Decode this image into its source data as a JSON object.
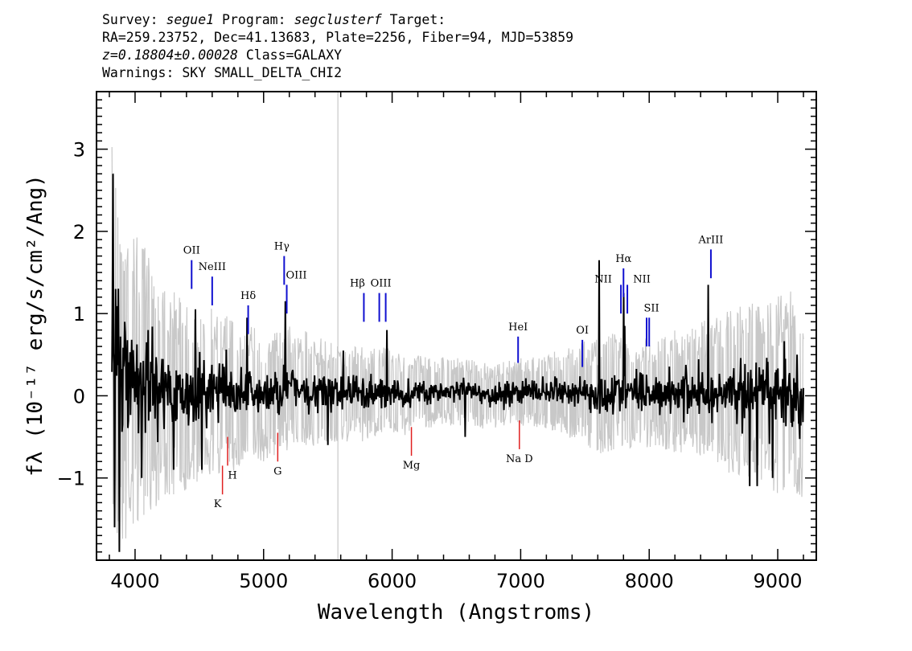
{
  "header": {
    "survey_label": "Survey:",
    "survey": "segue1",
    "program_label": "Program:",
    "program": "segclusterf",
    "target_label": "Target:",
    "line2": "RA=259.23752, Dec=41.13683, Plate=2256, Fiber=94, MJD=53859",
    "redshift": "z=0.18804±0.00028",
    "class_text": "Class=GALAXY",
    "warnings": "Warnings: SKY SMALL_DELTA_CHI2"
  },
  "chart_data": {
    "type": "line",
    "xlabel": "Wavelength (Angstroms)",
    "ylabel": "fλ (10⁻¹⁷ erg/s/cm²/Ang)",
    "xlim": [
      3700,
      9300
    ],
    "ylim": [
      -2.0,
      3.7
    ],
    "x_ticks": [
      4000,
      5000,
      6000,
      7000,
      8000,
      9000
    ],
    "y_ticks": [
      -1,
      0,
      1,
      2,
      3
    ],
    "x_tick_labels": [
      "4000",
      "5000",
      "6000",
      "7000",
      "8000",
      "9000"
    ],
    "y_tick_labels": [
      "−1",
      "0",
      "1",
      "2",
      "3"
    ],
    "colors": {
      "flux": "#000000",
      "error": "#c8c8c8",
      "emission": "#1010d0",
      "absorption": "#e02020"
    },
    "series": [
      {
        "name": "flux",
        "x": [
          3820,
          3900,
          4000,
          4100,
          4200,
          4300,
          4400,
          4500,
          4600,
          4700,
          4800,
          4900,
          5000,
          5100,
          5200,
          5300,
          5400,
          5500,
          5600,
          5700,
          5800,
          5900,
          6000,
          6100,
          6200,
          6300,
          6400,
          6500,
          6600,
          6700,
          6800,
          6900,
          7000,
          7100,
          7200,
          7300,
          7400,
          7500,
          7600,
          7700,
          7800,
          7900,
          8000,
          8100,
          8200,
          8300,
          8400,
          8500,
          8600,
          8700,
          8800,
          8900,
          9000,
          9100,
          9200
        ],
        "y": [
          0.6,
          0.3,
          0.2,
          0.15,
          0.1,
          0.05,
          0.0,
          0.0,
          0.05,
          0.05,
          0.0,
          0.05,
          0.0,
          0.05,
          0.1,
          0.1,
          0.05,
          0.0,
          0.05,
          0.05,
          0.0,
          0.05,
          0.05,
          0.0,
          0.05,
          0.05,
          0.05,
          0.05,
          0.05,
          0.0,
          0.0,
          0.05,
          0.05,
          0.05,
          0.05,
          0.05,
          0.05,
          0.05,
          0.0,
          0.05,
          0.05,
          0.05,
          0.05,
          0.05,
          0.05,
          0.05,
          0.05,
          0.0,
          0.05,
          0.05,
          0.05,
          0.0,
          0.0,
          0.05,
          -0.2
        ]
      },
      {
        "name": "error",
        "x": [
          3820,
          3900,
          4000,
          4100,
          4200,
          4300,
          4400,
          4500,
          4600,
          4700,
          4800,
          4900,
          5000,
          5100,
          5200,
          5300,
          5400,
          5500,
          5600,
          5700,
          5800,
          5900,
          6000,
          6100,
          6200,
          6300,
          6400,
          6500,
          6600,
          6700,
          6800,
          6900,
          7000,
          7100,
          7200,
          7300,
          7400,
          7500,
          7600,
          7700,
          7800,
          7900,
          8000,
          8100,
          8200,
          8300,
          8400,
          8500,
          8600,
          8700,
          8800,
          8900,
          9000,
          9100,
          9200
        ],
        "y": [
          2.2,
          1.9,
          1.6,
          1.4,
          1.2,
          1.1,
          1.0,
          0.95,
          0.9,
          0.85,
          0.8,
          0.75,
          0.7,
          0.68,
          0.65,
          0.62,
          0.6,
          0.58,
          0.55,
          0.52,
          0.5,
          0.48,
          0.45,
          0.42,
          0.4,
          0.38,
          0.37,
          0.36,
          0.35,
          0.35,
          0.35,
          0.35,
          0.36,
          0.37,
          0.4,
          0.45,
          0.5,
          0.55,
          0.65,
          0.65,
          0.6,
          0.6,
          0.6,
          0.62,
          0.65,
          0.7,
          0.75,
          0.8,
          0.85,
          0.9,
          0.95,
          1.0,
          1.05,
          1.1,
          1.1
        ]
      }
    ],
    "spikes": [
      {
        "x": 3830,
        "y": 2.7
      },
      {
        "x": 3840,
        "y": -1.6
      },
      {
        "x": 3850,
        "y": 1.3
      },
      {
        "x": 3880,
        "y": -1.9
      },
      {
        "x": 3920,
        "y": 0.9
      },
      {
        "x": 4050,
        "y": -1.0
      },
      {
        "x": 4100,
        "y": 0.8
      },
      {
        "x": 4300,
        "y": -0.9
      },
      {
        "x": 4470,
        "y": 1.05
      },
      {
        "x": 4520,
        "y": -0.9
      },
      {
        "x": 4870,
        "y": 0.95
      },
      {
        "x": 5170,
        "y": 1.15
      },
      {
        "x": 5500,
        "y": -0.6
      },
      {
        "x": 5620,
        "y": 0.55
      },
      {
        "x": 5960,
        "y": 0.8
      },
      {
        "x": 6570,
        "y": -0.5
      },
      {
        "x": 7610,
        "y": 1.65
      },
      {
        "x": 7800,
        "y": 1.25
      },
      {
        "x": 7810,
        "y": 0.85
      },
      {
        "x": 8460,
        "y": 1.35
      },
      {
        "x": 8780,
        "y": -1.1
      },
      {
        "x": 8840,
        "y": -1.1
      },
      {
        "x": 8960,
        "y": -1.0
      },
      {
        "x": 9060,
        "y": 0.45
      },
      {
        "x": 9150,
        "y": 0.5
      }
    ],
    "emission_lines": [
      {
        "label": "OII",
        "x": 4440,
        "y_top": 1.65,
        "y_bot": 1.3
      },
      {
        "label": "NeIII",
        "x": 4600,
        "y_top": 1.45,
        "y_bot": 1.1
      },
      {
        "label": "Hδ",
        "x": 4880,
        "y_top": 1.1,
        "y_bot": 0.75
      },
      {
        "label": "Hγ",
        "x": 5160,
        "y_top": 1.7,
        "y_bot": 1.35
      },
      {
        "label": "OIII",
        "x": 5180,
        "y_top": 1.35,
        "y_bot": 1.0
      },
      {
        "label": "Hβ",
        "x": 5780,
        "y_top": 1.25,
        "y_bot": 0.9
      },
      {
        "label": "OIII",
        "x": 5900,
        "y_top": 1.25,
        "y_bot": 0.9
      },
      {
        "label": "",
        "x": 5950,
        "y_top": 1.25,
        "y_bot": 0.9
      },
      {
        "label": "HeI",
        "x": 6980,
        "y_top": 0.72,
        "y_bot": 0.4
      },
      {
        "label": "OI",
        "x": 7480,
        "y_top": 0.68,
        "y_bot": 0.35
      },
      {
        "label": "NII",
        "x": 7780,
        "y_top": 1.35,
        "y_bot": 1.0
      },
      {
        "label": "Hα",
        "x": 7800,
        "y_top": 1.55,
        "y_bot": 1.2
      },
      {
        "label": "NII",
        "x": 7830,
        "y_top": 1.35,
        "y_bot": 1.0
      },
      {
        "label": "SII",
        "x": 7980,
        "y_top": 0.95,
        "y_bot": 0.6
      },
      {
        "label": "",
        "x": 8000,
        "y_top": 0.95,
        "y_bot": 0.6
      },
      {
        "label": "ArIII",
        "x": 8480,
        "y_top": 1.78,
        "y_bot": 1.43
      }
    ],
    "absorption_lines": [
      {
        "label": "K",
        "x": 4680,
        "y_top": -0.85,
        "y_bot": -1.2
      },
      {
        "label": "H",
        "x": 4720,
        "y_top": -0.5,
        "y_bot": -0.85
      },
      {
        "label": "G",
        "x": 5110,
        "y_top": -0.45,
        "y_bot": -0.8
      },
      {
        "label": "Mg",
        "x": 6150,
        "y_top": -0.38,
        "y_bot": -0.73
      },
      {
        "label": "Na D",
        "x": 6990,
        "y_top": -0.3,
        "y_bot": -0.65
      }
    ]
  }
}
